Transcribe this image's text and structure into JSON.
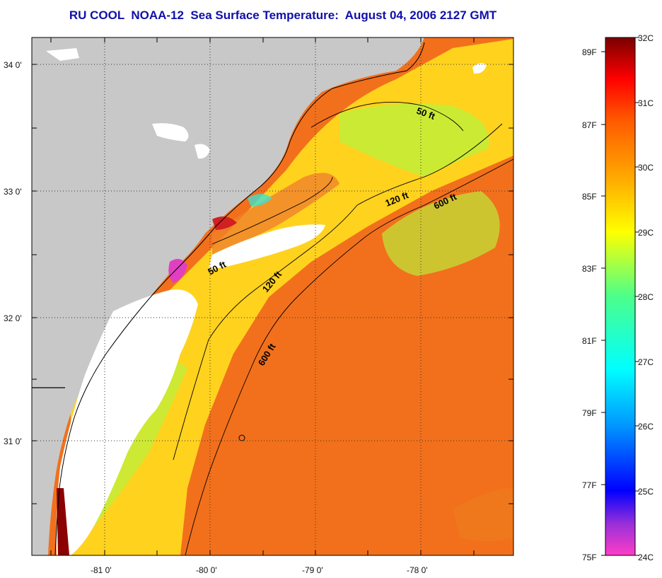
{
  "title": "RU COOL  NOAA-12  Sea Surface Temperature:  August 04, 2006 2127 GMT",
  "colors": {
    "land": "#c8c8c8",
    "cloud": "#ffffff",
    "sea_warm": "#f2701c",
    "sea_mid": "#ffd21e",
    "sea_cool": "#b9f23c",
    "frame": "#000000"
  },
  "axes": {
    "lat_labels": [
      "34 0'",
      "33 0'",
      "32 0'",
      "31 0'"
    ],
    "lon_labels": [
      "-81 0'",
      "-80 0'",
      "-79 0'",
      "-78 0'"
    ]
  },
  "isobaths": [
    {
      "label": "50 ft",
      "name": "isobath-50ft-north"
    },
    {
      "label": "120 ft",
      "name": "isobath-120ft-north"
    },
    {
      "label": "600 ft",
      "name": "isobath-600ft-north"
    },
    {
      "label": "50 ft",
      "name": "isobath-50ft-south"
    },
    {
      "label": "120 ft",
      "name": "isobath-120ft-south"
    },
    {
      "label": "600 ft",
      "name": "isobath-600ft-south"
    }
  ],
  "colorbar": {
    "celsius": [
      "32C",
      "31C",
      "30C",
      "29C",
      "28C",
      "27C",
      "26C",
      "25C",
      "24C"
    ],
    "fahrenheit": [
      "89F",
      "87F",
      "85F",
      "83F",
      "81F",
      "79F",
      "77F",
      "75F"
    ]
  }
}
